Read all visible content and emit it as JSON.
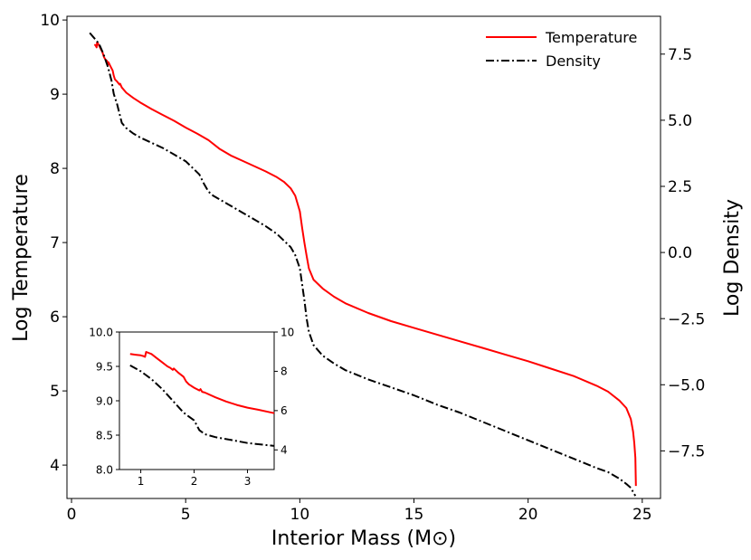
{
  "chart_data": [
    {
      "type": "line",
      "title": "",
      "xlabel": "Interior Mass (M⊙)",
      "ylabel_left": "Log Temperature",
      "ylabel_right": "Log Density",
      "xlim": [
        -0.2,
        25.8
      ],
      "ylim_left": [
        3.55,
        10.05
      ],
      "ylim_right": [
        -9.3,
        8.93
      ],
      "x_ticks": [
        0,
        5,
        10,
        15,
        20,
        25
      ],
      "y_left_ticks": [
        4,
        5,
        6,
        7,
        8,
        9,
        10
      ],
      "y_right_ticks": [
        -7.5,
        -5.0,
        -2.5,
        0.0,
        2.5,
        5.0,
        7.5
      ],
      "y_right_tick_labels": [
        "−7.5",
        "−5.0",
        "−2.5",
        "0.0",
        "2.5",
        "5.0",
        "7.5"
      ],
      "legend_position": "top-right",
      "grid": false,
      "series": [
        {
          "name": "Temperature",
          "axis": "left",
          "color": "#ff0000",
          "style": "solid",
          "x": [
            1.0,
            1.05,
            1.1,
            1.12,
            1.2,
            1.3,
            1.35,
            1.42,
            1.5,
            1.55,
            1.6,
            1.62,
            1.7,
            1.8,
            1.85,
            1.9,
            2.0,
            2.1,
            2.13,
            2.2,
            2.4,
            2.7,
            3.0,
            3.5,
            4.0,
            4.5,
            5.0,
            5.5,
            6.0,
            6.5,
            7.0,
            7.5,
            8.0,
            8.5,
            9.0,
            9.3,
            9.6,
            9.8,
            10.0,
            10.1,
            10.2,
            10.3,
            10.4,
            10.6,
            11.0,
            11.5,
            12.0,
            13.0,
            14.0,
            15.0,
            16.0,
            17.0,
            18.0,
            19.0,
            20.0,
            21.0,
            22.0,
            23.0,
            23.5,
            24.0,
            24.3,
            24.5,
            24.6,
            24.65,
            24.7,
            24.72
          ],
          "y": [
            9.67,
            9.66,
            9.63,
            9.7,
            9.66,
            9.6,
            9.57,
            9.5,
            9.46,
            9.45,
            9.4,
            9.43,
            9.38,
            9.32,
            9.25,
            9.2,
            9.17,
            9.13,
            9.14,
            9.09,
            9.02,
            8.95,
            8.89,
            8.8,
            8.72,
            8.64,
            8.55,
            8.47,
            8.38,
            8.26,
            8.17,
            8.1,
            8.03,
            7.96,
            7.88,
            7.82,
            7.73,
            7.63,
            7.42,
            7.2,
            7.0,
            6.82,
            6.65,
            6.5,
            6.38,
            6.27,
            6.18,
            6.05,
            5.94,
            5.85,
            5.76,
            5.67,
            5.58,
            5.49,
            5.4,
            5.3,
            5.2,
            5.07,
            4.99,
            4.87,
            4.77,
            4.62,
            4.45,
            4.3,
            4.1,
            3.72
          ]
        },
        {
          "name": "Density",
          "axis": "right",
          "color": "#000000",
          "style": "dashdot",
          "x": [
            0.8,
            1.0,
            1.2,
            1.4,
            1.6,
            1.75,
            1.85,
            2.0,
            2.2,
            2.4,
            2.7,
            3.0,
            3.5,
            4.0,
            4.5,
            5.0,
            5.3,
            5.6,
            5.8,
            6.0,
            6.2,
            6.5,
            7.0,
            7.5,
            8.0,
            8.5,
            9.0,
            9.3,
            9.6,
            9.8,
            10.0,
            10.1,
            10.2,
            10.3,
            10.4,
            10.6,
            11.0,
            11.5,
            12.0,
            13.0,
            14.0,
            15.0,
            16.0,
            17.0,
            18.0,
            19.0,
            20.0,
            21.0,
            22.0,
            23.0,
            23.5,
            24.0,
            24.3,
            24.5,
            24.6,
            24.7
          ],
          "y": [
            8.3,
            8.1,
            7.9,
            7.5,
            7.0,
            6.5,
            6.0,
            5.6,
            4.9,
            4.7,
            4.5,
            4.35,
            4.15,
            3.95,
            3.7,
            3.45,
            3.2,
            2.95,
            2.6,
            2.3,
            2.15,
            2.0,
            1.75,
            1.5,
            1.25,
            1.0,
            0.7,
            0.45,
            0.2,
            -0.1,
            -0.6,
            -1.2,
            -1.8,
            -2.5,
            -3.0,
            -3.5,
            -3.9,
            -4.2,
            -4.45,
            -4.8,
            -5.1,
            -5.4,
            -5.75,
            -6.05,
            -6.4,
            -6.75,
            -7.1,
            -7.45,
            -7.8,
            -8.15,
            -8.3,
            -8.55,
            -8.75,
            -8.9,
            -9.05,
            -9.2
          ]
        }
      ]
    },
    {
      "type": "line",
      "title": "",
      "xlabel": "",
      "ylabel_left": "",
      "ylabel_right": "",
      "xlim": [
        0.6,
        3.5
      ],
      "ylim_left": [
        8.0,
        10.0
      ],
      "ylim_right": [
        3.0,
        10.0
      ],
      "x_ticks": [
        1,
        2,
        3
      ],
      "y_left_ticks": [
        8.0,
        8.5,
        9.0,
        9.5,
        10.0
      ],
      "y_left_tick_labels": [
        "8.0",
        "8.5",
        "9.0",
        "9.5",
        "10.0"
      ],
      "y_right_ticks": [
        4,
        6,
        8,
        10
      ],
      "series": [
        {
          "name": "Temperature",
          "axis": "left",
          "color": "#ff0000",
          "style": "solid",
          "x": [
            0.8,
            0.9,
            1.0,
            1.05,
            1.08,
            1.1,
            1.2,
            1.3,
            1.4,
            1.5,
            1.55,
            1.6,
            1.62,
            1.7,
            1.8,
            1.85,
            1.9,
            2.0,
            2.1,
            2.12,
            2.15,
            2.2,
            2.4,
            2.6,
            2.8,
            3.0,
            3.2,
            3.5
          ],
          "y": [
            9.68,
            9.67,
            9.66,
            9.65,
            9.64,
            9.71,
            9.68,
            9.62,
            9.56,
            9.5,
            9.48,
            9.45,
            9.47,
            9.41,
            9.35,
            9.28,
            9.24,
            9.19,
            9.15,
            9.17,
            9.13,
            9.12,
            9.05,
            8.99,
            8.94,
            8.9,
            8.87,
            8.82
          ]
        },
        {
          "name": "Density",
          "axis": "right",
          "color": "#000000",
          "style": "dashdot",
          "x": [
            0.8,
            1.0,
            1.2,
            1.4,
            1.6,
            1.8,
            1.9,
            2.0,
            2.1,
            2.2,
            2.4,
            2.7,
            3.0,
            3.5
          ],
          "y": [
            8.3,
            8.0,
            7.6,
            7.1,
            6.5,
            5.9,
            5.7,
            5.5,
            5.0,
            4.8,
            4.65,
            4.5,
            4.35,
            4.2
          ]
        }
      ]
    }
  ]
}
